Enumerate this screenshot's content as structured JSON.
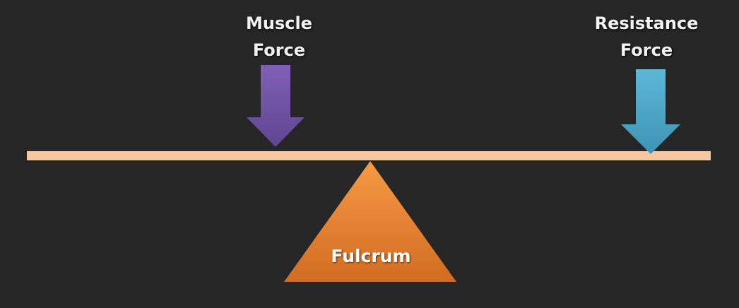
{
  "labels": {
    "muscle_force": [
      "Muscle",
      "Force"
    ],
    "resistance_force": [
      "Resistance",
      "Force"
    ],
    "fulcrum": "Fulcrum"
  },
  "colors": {
    "background": "#262626",
    "lever": "#f6c8a2",
    "muscle_arrow": "#7457a8",
    "resistance_arrow": "#4ea9cc",
    "fulcrum": "#df7c2d",
    "text": "#f2f2f2"
  }
}
